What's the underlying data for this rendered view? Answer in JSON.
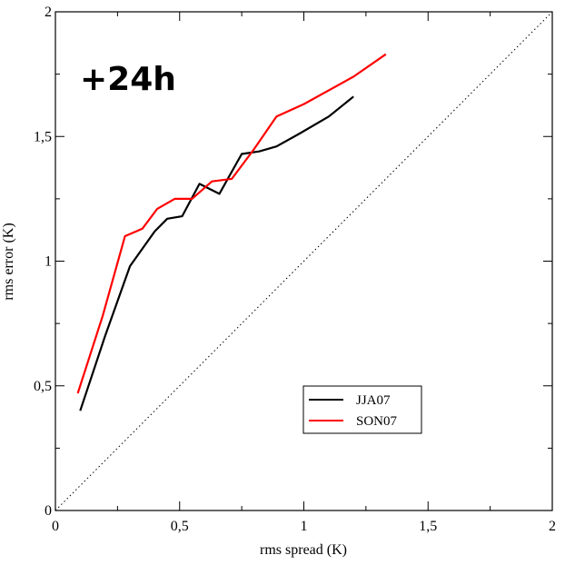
{
  "chart_data": {
    "type": "line",
    "annotation": "+24h",
    "xlabel": "rms spread (K)",
    "ylabel": "rms error (K)",
    "xlim": [
      0,
      2
    ],
    "ylim": [
      0,
      2
    ],
    "x_ticks": [
      0,
      0.5,
      1,
      1.5,
      2
    ],
    "y_ticks": [
      0,
      0.5,
      1,
      1.5,
      2
    ],
    "x_tick_labels": [
      "0",
      "0,5",
      "1",
      "1,5",
      "2"
    ],
    "y_tick_labels": [
      "0",
      "0,5",
      "1",
      "1,5",
      "2"
    ],
    "grid": false,
    "legend_position": "bottom-right",
    "reference_line": {
      "style": "dotted",
      "from": [
        0,
        0
      ],
      "to": [
        2,
        2
      ]
    },
    "series": [
      {
        "name": "JJA07",
        "color": "#000000",
        "points": [
          [
            0.1,
            0.4
          ],
          [
            0.2,
            0.7
          ],
          [
            0.3,
            0.98
          ],
          [
            0.4,
            1.12
          ],
          [
            0.45,
            1.17
          ],
          [
            0.51,
            1.18
          ],
          [
            0.58,
            1.31
          ],
          [
            0.66,
            1.27
          ],
          [
            0.75,
            1.43
          ],
          [
            0.82,
            1.44
          ],
          [
            0.89,
            1.46
          ],
          [
            0.98,
            1.51
          ],
          [
            1.1,
            1.58
          ],
          [
            1.2,
            1.66
          ]
        ]
      },
      {
        "name": "SON07",
        "color": "#ff0000",
        "points": [
          [
            0.09,
            0.47
          ],
          [
            0.19,
            0.78
          ],
          [
            0.28,
            1.1
          ],
          [
            0.35,
            1.13
          ],
          [
            0.41,
            1.21
          ],
          [
            0.48,
            1.25
          ],
          [
            0.55,
            1.25
          ],
          [
            0.63,
            1.32
          ],
          [
            0.71,
            1.33
          ],
          [
            0.8,
            1.45
          ],
          [
            0.89,
            1.58
          ],
          [
            1.0,
            1.63
          ],
          [
            1.2,
            1.74
          ],
          [
            1.33,
            1.83
          ]
        ]
      }
    ]
  }
}
